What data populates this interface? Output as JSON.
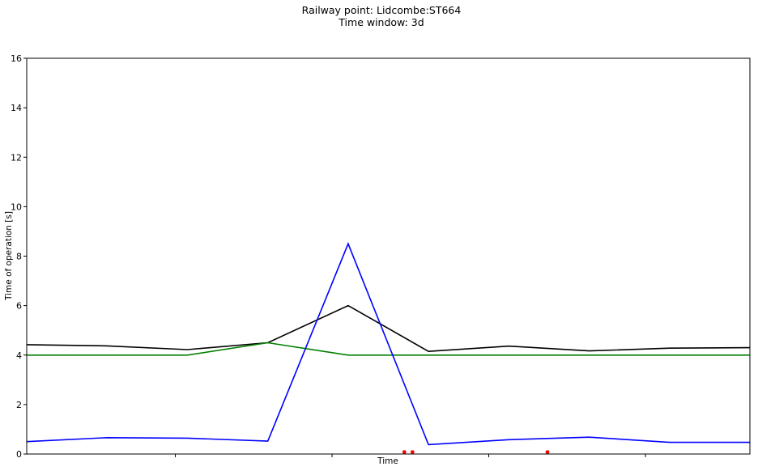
{
  "chart_data": {
    "type": "line",
    "title": [
      "Railway point: Lidcombe:ST664",
      "Time window: 3d"
    ],
    "xlabel": "Time",
    "ylabel": "Time of operation [s]",
    "ylim": [
      0,
      16
    ],
    "yticks": [
      0,
      2,
      4,
      6,
      8,
      10,
      12,
      14,
      16
    ],
    "xlim": [
      0,
      9
    ],
    "xticks": [
      1.85,
      3.8,
      5.75,
      7.7
    ],
    "grid": false,
    "legend": "none",
    "x": [
      0,
      1,
      2,
      3,
      4,
      5,
      6,
      7,
      8,
      9
    ],
    "series": [
      {
        "color": "#000000",
        "values": [
          4.42,
          4.37,
          4.22,
          4.5,
          6.0,
          4.15,
          4.36,
          4.17,
          4.28,
          4.3
        ]
      },
      {
        "color": "#008000",
        "values": [
          4.0,
          4.0,
          4.0,
          4.5,
          4.0,
          4.0,
          4.0,
          4.0,
          4.0,
          4.0
        ]
      },
      {
        "color": "#0000ff",
        "values": [
          0.5,
          0.66,
          0.64,
          0.52,
          8.5,
          0.38,
          0.58,
          0.68,
          0.47,
          0.47
        ]
      }
    ],
    "scatter": {
      "color": "#ff0000",
      "x": [
        4.7,
        4.8,
        6.48
      ],
      "values": [
        0.08,
        0.08,
        0.08
      ]
    }
  }
}
